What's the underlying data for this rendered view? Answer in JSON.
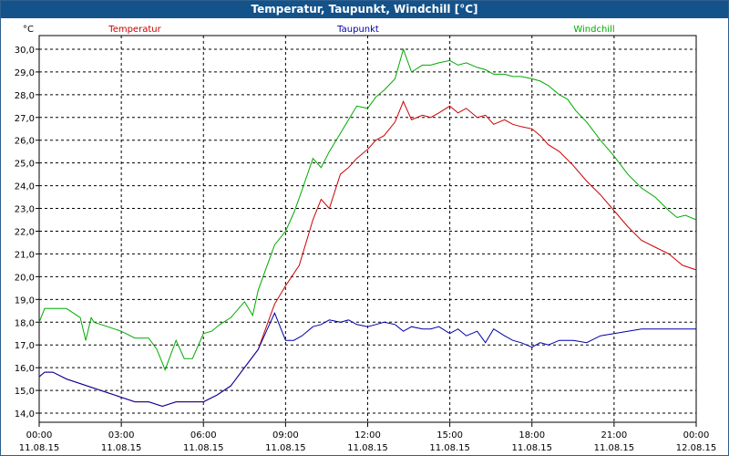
{
  "window": {
    "title": "Temperatur, Taupunkt, Windchill [°C]"
  },
  "chart_data": {
    "type": "line",
    "title": "Temperatur, Taupunkt, Windchill [°C]",
    "ylabel": "°C",
    "ylim": [
      13.6,
      30.6
    ],
    "y_ticks": [
      "14,0",
      "15,0",
      "16,0",
      "17,0",
      "18,0",
      "19,0",
      "20,0",
      "21,0",
      "22,0",
      "23,0",
      "24,0",
      "25,0",
      "26,0",
      "27,0",
      "28,0",
      "29,0",
      "30,0"
    ],
    "y_tick_values": [
      14,
      15,
      16,
      17,
      18,
      19,
      20,
      21,
      22,
      23,
      24,
      25,
      26,
      27,
      28,
      29,
      30
    ],
    "xlim": [
      0,
      24
    ],
    "x_tick_values": [
      0,
      3,
      6,
      9,
      12,
      15,
      18,
      21,
      24
    ],
    "x_tick_times": [
      "00:00",
      "03:00",
      "06:00",
      "09:00",
      "12:00",
      "15:00",
      "18:00",
      "21:00",
      "00:00"
    ],
    "x_tick_dates": [
      "11.08.15",
      "11.08.15",
      "11.08.15",
      "11.08.15",
      "11.08.15",
      "11.08.15",
      "11.08.15",
      "11.08.15",
      "12.08.15"
    ],
    "grid": true,
    "legend_placement": "top",
    "x_unit": "hours since 11.08.15 00:00",
    "series": [
      {
        "name": "Temperatur",
        "color": "#cc0000",
        "x": [
          0,
          0.2,
          0.5,
          1,
          1.5,
          2,
          2.5,
          3,
          3.5,
          4,
          4.5,
          5,
          5.5,
          6,
          6.5,
          7,
          7.5,
          8,
          8.3,
          8.6,
          9,
          9.5,
          10,
          10.3,
          10.6,
          11,
          11.3,
          11.6,
          12,
          12.3,
          12.6,
          13,
          13.3,
          13.6,
          14,
          14.3,
          14.6,
          15,
          15.3,
          15.6,
          16,
          16.3,
          16.6,
          17,
          17.3,
          17.6,
          18,
          18.3,
          18.6,
          19,
          19.5,
          20,
          20.5,
          21,
          21.5,
          22,
          22.5,
          23,
          23.5,
          24
        ],
        "y": [
          15.6,
          15.8,
          15.8,
          15.5,
          15.3,
          15.1,
          14.9,
          14.7,
          14.5,
          14.5,
          14.3,
          14.5,
          14.5,
          14.5,
          14.8,
          15.2,
          16.0,
          16.8,
          17.8,
          18.8,
          19.6,
          20.5,
          22.5,
          23.4,
          23.0,
          24.5,
          24.8,
          25.2,
          25.6,
          26.0,
          26.2,
          26.8,
          27.7,
          26.9,
          27.1,
          27.0,
          27.2,
          27.5,
          27.2,
          27.4,
          27.0,
          27.1,
          26.7,
          26.9,
          26.7,
          26.6,
          26.5,
          26.2,
          25.8,
          25.5,
          24.9,
          24.2,
          23.6,
          22.9,
          22.2,
          21.6,
          21.3,
          21.0,
          20.5,
          20.3
        ]
      },
      {
        "name": "Taupunkt",
        "color": "#0000aa",
        "x": [
          0,
          0.2,
          0.5,
          1,
          1.5,
          2,
          2.5,
          3,
          3.5,
          4,
          4.5,
          5,
          5.5,
          6,
          6.5,
          7,
          7.5,
          8,
          8.3,
          8.6,
          9,
          9.3,
          9.6,
          10,
          10.3,
          10.6,
          11,
          11.3,
          11.6,
          12,
          12.3,
          12.6,
          13,
          13.3,
          13.6,
          14,
          14.3,
          14.6,
          15,
          15.3,
          15.6,
          16,
          16.3,
          16.6,
          17,
          17.3,
          17.6,
          18,
          18.3,
          18.6,
          19,
          19.5,
          20,
          20.5,
          21,
          21.5,
          22,
          22.5,
          23,
          23.5,
          24
        ],
        "y": [
          15.6,
          15.8,
          15.8,
          15.5,
          15.3,
          15.1,
          14.9,
          14.7,
          14.5,
          14.5,
          14.3,
          14.5,
          14.5,
          14.5,
          14.8,
          15.2,
          16.0,
          16.8,
          17.6,
          18.4,
          17.2,
          17.2,
          17.4,
          17.8,
          17.9,
          18.1,
          18.0,
          18.1,
          17.9,
          17.8,
          17.9,
          18.0,
          17.9,
          17.6,
          17.8,
          17.7,
          17.7,
          17.8,
          17.5,
          17.7,
          17.4,
          17.6,
          17.1,
          17.7,
          17.4,
          17.2,
          17.1,
          16.9,
          17.1,
          17.0,
          17.2,
          17.2,
          17.1,
          17.4,
          17.5,
          17.6,
          17.7,
          17.7,
          17.7,
          17.7,
          17.7
        ]
      },
      {
        "name": "Windchill",
        "color": "#00aa00",
        "x": [
          0,
          0.2,
          0.5,
          1,
          1.5,
          1.7,
          1.9,
          2,
          2.5,
          3,
          3.5,
          4,
          4.3,
          4.6,
          5,
          5.3,
          5.6,
          6,
          6.3,
          6.6,
          7,
          7.5,
          7.8,
          8,
          8.3,
          8.6,
          9,
          9.3,
          9.6,
          10,
          10.3,
          10.6,
          11,
          11.3,
          11.6,
          12,
          12.3,
          12.6,
          13,
          13.3,
          13.6,
          14,
          14.3,
          14.6,
          15,
          15.3,
          15.6,
          16,
          16.3,
          16.6,
          17,
          17.3,
          17.6,
          18,
          18.3,
          18.6,
          19,
          19.3,
          19.6,
          20,
          20.5,
          21,
          21.5,
          22,
          22.5,
          23,
          23.3,
          23.6,
          24
        ],
        "y": [
          18.0,
          18.6,
          18.6,
          18.6,
          18.2,
          17.2,
          18.2,
          18.0,
          17.8,
          17.6,
          17.3,
          17.3,
          16.8,
          15.9,
          17.2,
          16.4,
          16.4,
          17.5,
          17.6,
          17.9,
          18.2,
          18.9,
          18.3,
          19.4,
          20.4,
          21.4,
          22.0,
          22.8,
          23.8,
          25.2,
          24.8,
          25.5,
          26.3,
          26.9,
          27.5,
          27.4,
          27.9,
          28.2,
          28.7,
          30.0,
          29.0,
          29.3,
          29.3,
          29.4,
          29.5,
          29.3,
          29.4,
          29.2,
          29.1,
          28.9,
          28.9,
          28.8,
          28.8,
          28.7,
          28.6,
          28.4,
          28.0,
          27.8,
          27.3,
          26.8,
          26.0,
          25.3,
          24.5,
          23.9,
          23.5,
          22.9,
          22.6,
          22.7,
          22.5
        ]
      }
    ]
  }
}
